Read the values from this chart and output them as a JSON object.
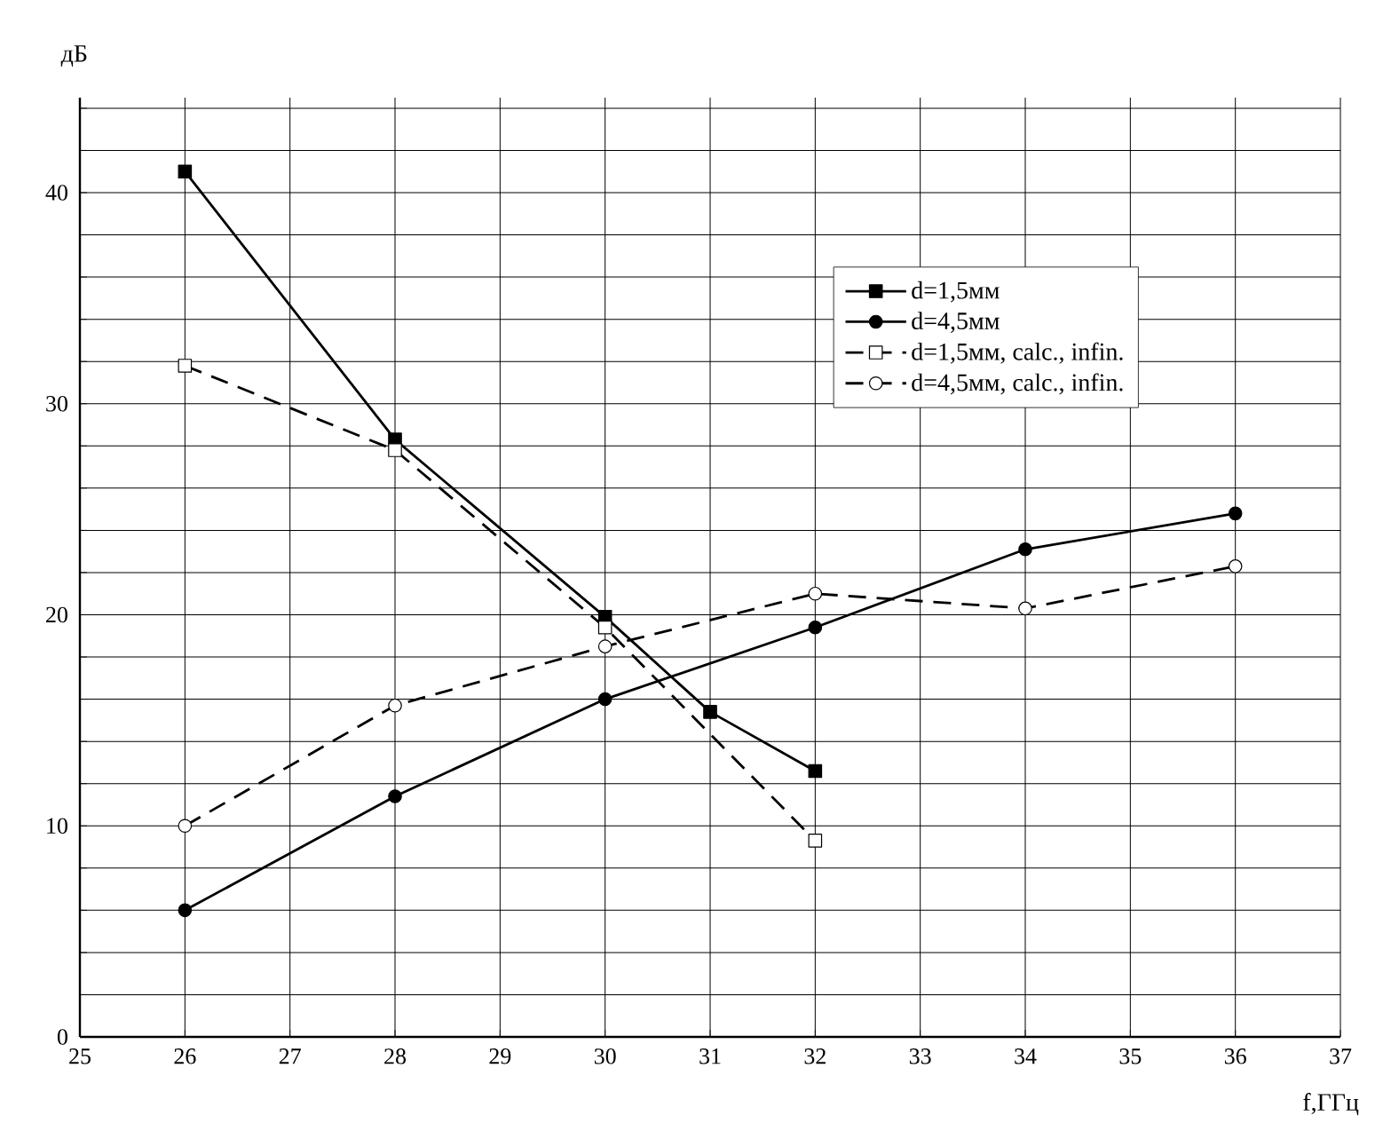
{
  "chart_data": {
    "type": "line",
    "xlabel": "f,ГГц",
    "ylabel": "дБ",
    "xlim": [
      25,
      37
    ],
    "xticks": [
      25,
      26,
      27,
      28,
      29,
      30,
      31,
      32,
      33,
      34,
      35,
      36,
      37
    ],
    "ylim": [
      0,
      44.5
    ],
    "yticks": [
      0,
      {
        "value": 2,
        "label": null
      },
      {
        "value": 4,
        "label": null
      },
      {
        "value": 6,
        "label": null
      },
      {
        "value": 8,
        "label": null
      },
      10,
      {
        "value": 12,
        "label": null
      },
      {
        "value": 14,
        "label": null
      },
      {
        "value": 16,
        "label": null
      },
      {
        "value": 18,
        "label": null
      },
      20,
      {
        "value": 22,
        "label": null
      },
      {
        "value": 24,
        "label": null
      },
      {
        "value": 26,
        "label": null
      },
      {
        "value": 28,
        "label": null
      },
      30,
      {
        "value": 32,
        "label": null
      },
      {
        "value": 34,
        "label": null
      },
      {
        "value": 36,
        "label": null
      },
      {
        "value": 38,
        "label": null
      },
      40,
      {
        "value": 42,
        "label": null
      },
      {
        "value": 44,
        "label": null
      }
    ],
    "grid": true,
    "legend": "top right",
    "series": [
      {
        "name": "d=1,5мм",
        "color": "#000000",
        "marker": "square",
        "line_style": "solid",
        "x": [
          26,
          28,
          30,
          31,
          32
        ],
        "values": [
          41.0,
          28.3,
          19.9,
          15.4,
          12.6
        ]
      },
      {
        "name": "d=4,5мм",
        "color": "#000000",
        "marker": "circle",
        "line_style": "solid",
        "x": [
          26,
          28,
          30,
          32,
          34,
          36
        ],
        "values": [
          6.0,
          11.4,
          16.0,
          19.4,
          23.1,
          24.8
        ]
      },
      {
        "name": "d=1,5мм, calc., infin.",
        "color": "#000000",
        "marker": "square",
        "line_style": "dashed",
        "x": [
          26,
          28,
          30,
          32
        ],
        "values": [
          31.8,
          27.8,
          19.4,
          9.3
        ]
      },
      {
        "name": "d=4,5мм, calc., infin.",
        "color": "#000000",
        "marker": "circle",
        "line_style": "dashed",
        "x": [
          26,
          28,
          30,
          32,
          34,
          36
        ],
        "values": [
          10.0,
          15.7,
          18.5,
          21.0,
          20.3,
          22.3
        ]
      }
    ]
  }
}
